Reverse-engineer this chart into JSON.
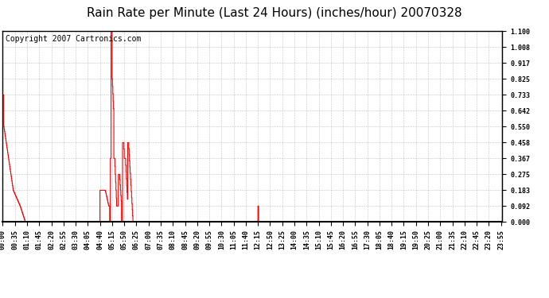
{
  "title": "Rain Rate per Minute (Last 24 Hours) (inches/hour) 20070328",
  "copyright_text": "Copyright 2007 Cartronics.com",
  "line_color": "#ff0000",
  "bg_color": "#ffffff",
  "plot_bg_color": "#ffffff",
  "grid_color": "#aaaaaa",
  "tick_label_color": "#000000",
  "border_color": "#000000",
  "ylim": [
    0.0,
    1.1
  ],
  "yticks": [
    0.0,
    0.092,
    0.183,
    0.275,
    0.367,
    0.458,
    0.55,
    0.642,
    0.733,
    0.825,
    0.917,
    1.008,
    1.1
  ],
  "ytick_labels": [
    "0.000",
    "0.092",
    "0.183",
    "0.275",
    "0.367",
    "0.458",
    "0.550",
    "0.642",
    "0.733",
    "0.825",
    "0.917",
    "1.008",
    "1.100"
  ],
  "total_minutes": 1440,
  "x_tick_interval": 35,
  "title_fontsize": 11,
  "copyright_fontsize": 7,
  "tick_fontsize": 6
}
